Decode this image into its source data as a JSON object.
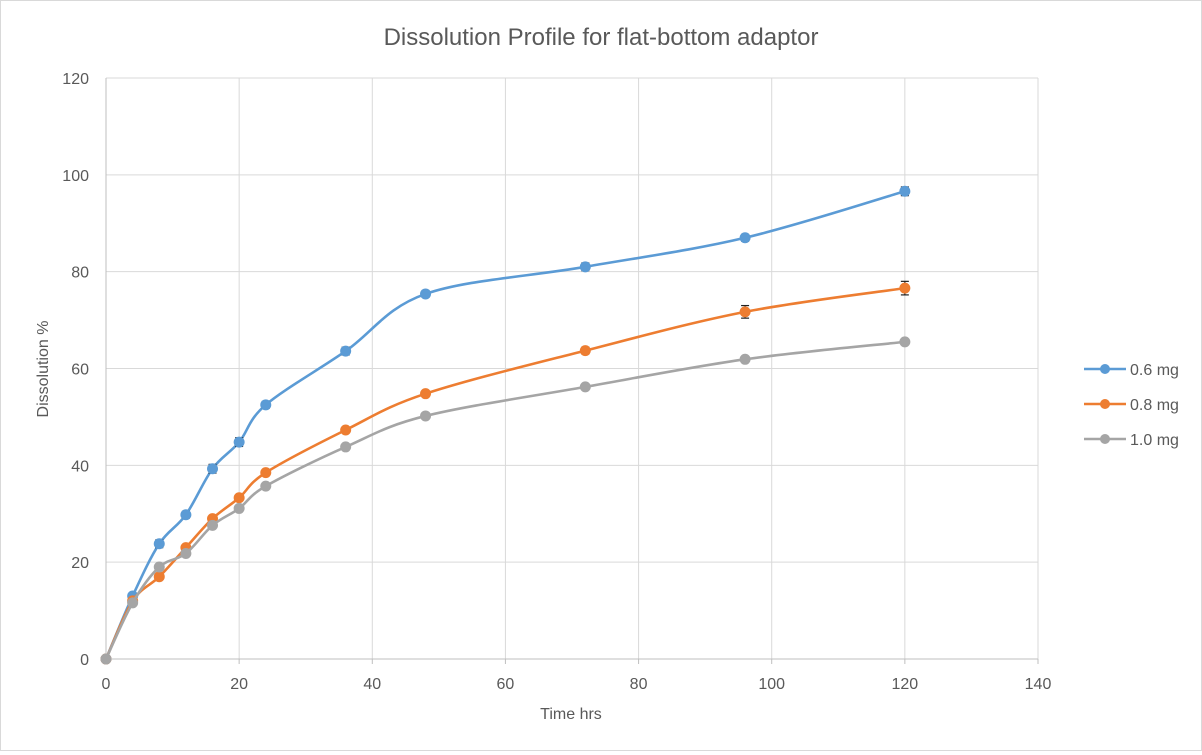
{
  "chart_data": {
    "type": "line",
    "title": "Dissolution Profile  for flat-bottom adaptor",
    "xlabel": "Time hrs",
    "ylabel": "Dissolution %",
    "xlim": [
      0,
      140
    ],
    "ylim": [
      0,
      120
    ],
    "xticks": [
      0,
      20,
      40,
      60,
      80,
      100,
      120,
      140
    ],
    "yticks": [
      0,
      20,
      40,
      60,
      80,
      100,
      120
    ],
    "grid": true,
    "legend_position": "right",
    "x": [
      0,
      4,
      8,
      12,
      16,
      20,
      24,
      36,
      48,
      72,
      96,
      120
    ],
    "series": [
      {
        "name": "0.6 mg",
        "color": "#5b9bd5",
        "values": [
          0,
          13,
          23.8,
          29.8,
          39.3,
          44.8,
          52.5,
          63.6,
          75.4,
          81,
          87,
          96.6
        ],
        "error": [
          0.3,
          0.6,
          0.8,
          0.7,
          0.9,
          0.9,
          0.7,
          0.8,
          0.7,
          0.8,
          0.7,
          0.9
        ]
      },
      {
        "name": "0.8 mg",
        "color": "#ed7d31",
        "values": [
          0,
          12,
          17,
          23,
          29,
          33.3,
          38.5,
          47.3,
          54.8,
          63.7,
          71.7,
          76.6
        ],
        "error": [
          0.2,
          0.4,
          0.4,
          0.4,
          0.5,
          0.5,
          0.5,
          0.6,
          0.6,
          0.7,
          1.3,
          1.4
        ]
      },
      {
        "name": "1.0 mg",
        "color": "#a5a5a5",
        "values": [
          0,
          11.6,
          19,
          21.8,
          27.6,
          31.1,
          35.7,
          43.8,
          50.2,
          56.2,
          61.9,
          65.5
        ],
        "error": [
          0.2,
          0.3,
          0.3,
          0.3,
          0.3,
          0.3,
          0.3,
          0.3,
          0.3,
          0.3,
          0.3,
          0.3
        ]
      }
    ]
  }
}
